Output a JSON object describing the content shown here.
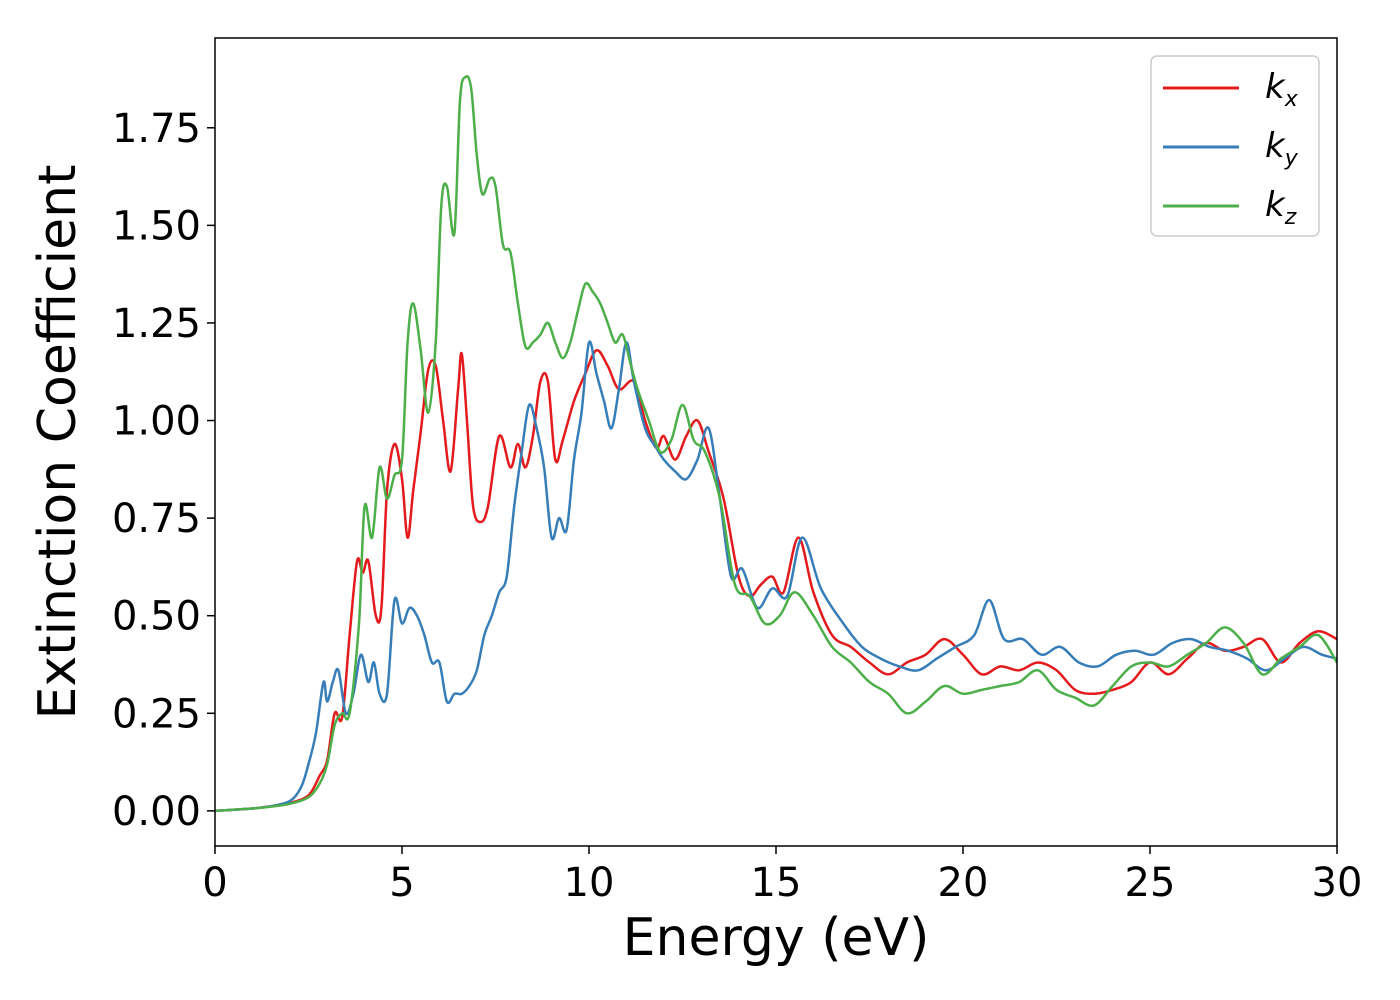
{
  "chart_data": {
    "type": "line",
    "title": "",
    "xlabel": "Energy (eV)",
    "ylabel": "Extinction Coefficient",
    "xlim": [
      0,
      30
    ],
    "ylim": [
      -0.09,
      1.98
    ],
    "xticks": [
      0,
      5,
      10,
      15,
      20,
      25,
      30
    ],
    "yticks": [
      0.0,
      0.25,
      0.5,
      0.75,
      1.0,
      1.25,
      1.5,
      1.75
    ],
    "ytick_labels": [
      "0.00",
      "0.25",
      "0.50",
      "0.75",
      "1.00",
      "1.25",
      "1.50",
      "1.75"
    ],
    "grid": false,
    "legend_position": "top-right",
    "series": [
      {
        "name": "kx",
        "legend_base": "k",
        "legend_sub": "x",
        "color": "#e41a1c",
        "x": [
          0,
          1,
          1.5,
          2,
          2.5,
          2.8,
          3,
          3.2,
          3.4,
          3.6,
          3.8,
          3.95,
          4.1,
          4.3,
          4.45,
          4.6,
          4.8,
          5,
          5.15,
          5.3,
          5.5,
          5.7,
          5.9,
          6.1,
          6.3,
          6.5,
          6.6,
          6.75,
          6.9,
          7.1,
          7.3,
          7.6,
          7.9,
          8.1,
          8.3,
          8.5,
          8.7,
          8.9,
          9.1,
          9.3,
          9.6,
          9.9,
          10.2,
          10.5,
          10.8,
          11.2,
          11.5,
          11.8,
          12.0,
          12.3,
          12.6,
          12.9,
          13.2,
          13.6,
          14.0,
          14.3,
          14.6,
          14.9,
          15.2,
          15.6,
          16.0,
          16.5,
          17.0,
          17.5,
          18.0,
          18.5,
          19.0,
          19.5,
          20.0,
          20.5,
          21.0,
          21.5,
          22.0,
          22.5,
          23.0,
          23.5,
          24.0,
          24.5,
          25.0,
          25.5,
          26.0,
          26.5,
          27.0,
          27.5,
          28.0,
          28.5,
          29.0,
          29.5,
          30.0
        ],
        "y": [
          0.0,
          0.006,
          0.012,
          0.02,
          0.04,
          0.09,
          0.13,
          0.25,
          0.24,
          0.45,
          0.64,
          0.61,
          0.64,
          0.5,
          0.52,
          0.82,
          0.94,
          0.85,
          0.7,
          0.82,
          0.97,
          1.13,
          1.14,
          1.0,
          0.87,
          1.08,
          1.17,
          0.98,
          0.78,
          0.74,
          0.78,
          0.96,
          0.88,
          0.94,
          0.88,
          0.96,
          1.1,
          1.1,
          0.9,
          0.95,
          1.05,
          1.12,
          1.18,
          1.14,
          1.08,
          1.1,
          1.0,
          0.93,
          0.96,
          0.9,
          0.96,
          1.0,
          0.92,
          0.8,
          0.6,
          0.55,
          0.58,
          0.6,
          0.56,
          0.7,
          0.56,
          0.45,
          0.42,
          0.38,
          0.35,
          0.38,
          0.4,
          0.44,
          0.4,
          0.35,
          0.37,
          0.36,
          0.38,
          0.36,
          0.31,
          0.3,
          0.31,
          0.33,
          0.38,
          0.35,
          0.39,
          0.43,
          0.41,
          0.42,
          0.44,
          0.38,
          0.43,
          0.46,
          0.44
        ]
      },
      {
        "name": "ky",
        "legend_base": "k",
        "legend_sub": "y",
        "color": "#377eb8",
        "x": [
          0,
          1,
          1.5,
          2,
          2.3,
          2.5,
          2.7,
          2.9,
          3.0,
          3.15,
          3.3,
          3.5,
          3.7,
          3.9,
          4.1,
          4.25,
          4.4,
          4.6,
          4.8,
          5.0,
          5.2,
          5.4,
          5.6,
          5.8,
          6.0,
          6.2,
          6.4,
          6.6,
          6.8,
          7.0,
          7.2,
          7.4,
          7.6,
          7.8,
          8.0,
          8.2,
          8.4,
          8.6,
          8.8,
          9.0,
          9.2,
          9.4,
          9.6,
          9.8,
          10.0,
          10.2,
          10.4,
          10.6,
          10.8,
          11.0,
          11.2,
          11.5,
          11.8,
          12.0,
          12.3,
          12.6,
          12.9,
          13.2,
          13.5,
          13.8,
          14.1,
          14.5,
          14.9,
          15.3,
          15.7,
          16.2,
          16.8,
          17.3,
          17.8,
          18.3,
          18.8,
          19.3,
          19.8,
          20.3,
          20.7,
          21.1,
          21.6,
          22.1,
          22.6,
          23.1,
          23.6,
          24.1,
          24.6,
          25.1,
          25.6,
          26.1,
          26.6,
          27.1,
          27.6,
          28.1,
          28.6,
          29.1,
          29.6,
          30.0
        ],
        "y": [
          0.0,
          0.006,
          0.012,
          0.025,
          0.06,
          0.12,
          0.2,
          0.33,
          0.28,
          0.33,
          0.36,
          0.25,
          0.3,
          0.4,
          0.33,
          0.38,
          0.3,
          0.3,
          0.54,
          0.48,
          0.52,
          0.5,
          0.45,
          0.38,
          0.38,
          0.28,
          0.3,
          0.3,
          0.32,
          0.36,
          0.45,
          0.5,
          0.56,
          0.6,
          0.78,
          0.92,
          1.04,
          0.98,
          0.88,
          0.7,
          0.75,
          0.72,
          0.9,
          1.02,
          1.2,
          1.12,
          1.05,
          0.98,
          1.08,
          1.2,
          1.1,
          0.98,
          0.93,
          0.9,
          0.87,
          0.85,
          0.9,
          0.98,
          0.8,
          0.6,
          0.62,
          0.52,
          0.57,
          0.55,
          0.7,
          0.57,
          0.48,
          0.42,
          0.39,
          0.37,
          0.36,
          0.39,
          0.42,
          0.45,
          0.54,
          0.44,
          0.44,
          0.4,
          0.42,
          0.38,
          0.37,
          0.4,
          0.41,
          0.4,
          0.43,
          0.44,
          0.42,
          0.41,
          0.39,
          0.36,
          0.39,
          0.42,
          0.4,
          0.39
        ]
      },
      {
        "name": "kz",
        "legend_base": "k",
        "legend_sub": "z",
        "color": "#4daf4a",
        "x": [
          0,
          1,
          1.5,
          2,
          2.5,
          2.8,
          3.0,
          3.2,
          3.4,
          3.6,
          3.85,
          4.0,
          4.2,
          4.4,
          4.6,
          4.8,
          5.0,
          5.15,
          5.3,
          5.5,
          5.7,
          5.9,
          6.05,
          6.2,
          6.4,
          6.55,
          6.7,
          6.85,
          7.0,
          7.15,
          7.35,
          7.5,
          7.7,
          7.9,
          8.1,
          8.3,
          8.5,
          8.7,
          8.9,
          9.1,
          9.3,
          9.5,
          9.7,
          9.9,
          10.1,
          10.3,
          10.5,
          10.7,
          10.9,
          11.1,
          11.3,
          11.6,
          11.9,
          12.2,
          12.5,
          12.8,
          13.1,
          13.5,
          13.9,
          14.3,
          14.7,
          15.1,
          15.5,
          16.0,
          16.5,
          17.0,
          17.5,
          18.0,
          18.5,
          19.0,
          19.5,
          20.0,
          20.5,
          21.0,
          21.5,
          22.0,
          22.5,
          23.0,
          23.5,
          24.0,
          24.5,
          25.0,
          25.5,
          26.0,
          26.5,
          27.0,
          27.5,
          28.0,
          28.5,
          29.0,
          29.5,
          30.0
        ],
        "y": [
          0.0,
          0.006,
          0.011,
          0.018,
          0.035,
          0.07,
          0.12,
          0.22,
          0.25,
          0.25,
          0.48,
          0.78,
          0.7,
          0.88,
          0.8,
          0.86,
          0.9,
          1.2,
          1.3,
          1.18,
          1.02,
          1.2,
          1.55,
          1.6,
          1.48,
          1.82,
          1.88,
          1.85,
          1.68,
          1.58,
          1.62,
          1.6,
          1.45,
          1.43,
          1.3,
          1.19,
          1.2,
          1.22,
          1.25,
          1.2,
          1.16,
          1.2,
          1.28,
          1.35,
          1.33,
          1.3,
          1.25,
          1.2,
          1.22,
          1.15,
          1.08,
          1.0,
          0.92,
          0.95,
          1.04,
          0.95,
          0.92,
          0.8,
          0.58,
          0.55,
          0.48,
          0.5,
          0.56,
          0.5,
          0.42,
          0.38,
          0.33,
          0.3,
          0.25,
          0.28,
          0.32,
          0.3,
          0.31,
          0.32,
          0.33,
          0.36,
          0.31,
          0.29,
          0.27,
          0.32,
          0.37,
          0.38,
          0.37,
          0.4,
          0.43,
          0.47,
          0.43,
          0.35,
          0.39,
          0.42,
          0.45,
          0.38
        ]
      }
    ]
  }
}
